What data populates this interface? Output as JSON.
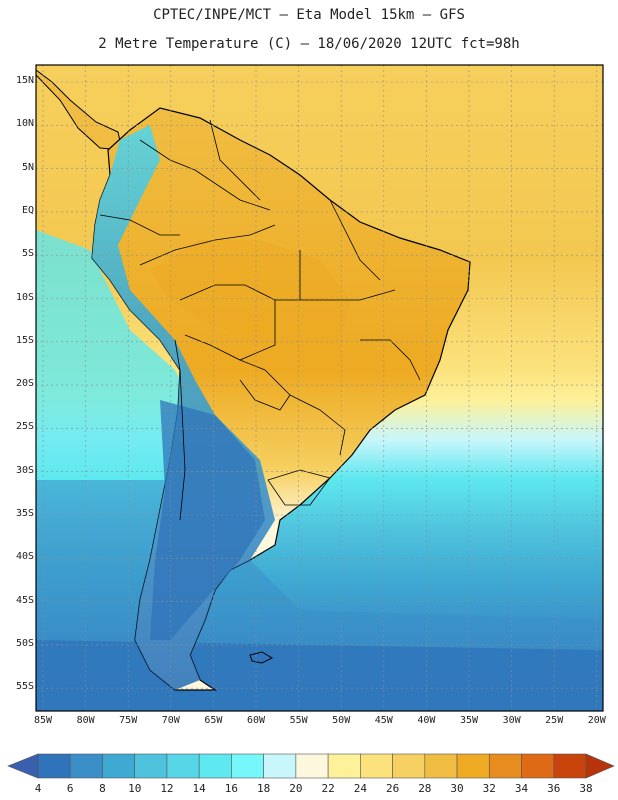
{
  "title_line1": "CPTEC/INPE/MCT –  Eta Model 15km – GFS",
  "title_line2": "2 Metre Temperature (C) – 18/06/2020 12UTC fct=98h",
  "lat_labels": [
    "15N",
    "10N",
    "5N",
    "EQ",
    "5S",
    "10S",
    "15S",
    "20S",
    "25S",
    "30S",
    "35S",
    "40S",
    "45S",
    "50S",
    "55S"
  ],
  "lon_labels": [
    "85W",
    "80W",
    "75W",
    "70W",
    "65W",
    "60W",
    "55W",
    "50W",
    "45W",
    "40W",
    "35W",
    "30W",
    "25W",
    "20W"
  ],
  "colorbar": {
    "labels": [
      "4",
      "6",
      "8",
      "10",
      "12",
      "14",
      "16",
      "18",
      "20",
      "22",
      "24",
      "26",
      "28",
      "30",
      "32",
      "34",
      "36",
      "38"
    ],
    "colors": [
      "#3a5fae",
      "#2f74ba",
      "#3a8fc8",
      "#3ea9d2",
      "#4fc3dd",
      "#56d6e6",
      "#5ee8ef",
      "#76f7f9",
      "#c8f6fb",
      "#fdf7dd",
      "#fdf19a",
      "#fce27c",
      "#f6d060",
      "#f0bd42",
      "#edaa22",
      "#e78c1f",
      "#de6a16",
      "#c9430c",
      "#b7340a"
    ]
  },
  "regions": {
    "continent": "South America",
    "countries": [
      "Colombia",
      "Venezuela",
      "Ecuador",
      "Peru",
      "Brazil",
      "Bolivia",
      "Paraguay",
      "Chile",
      "Argentina",
      "Uruguay"
    ]
  }
}
